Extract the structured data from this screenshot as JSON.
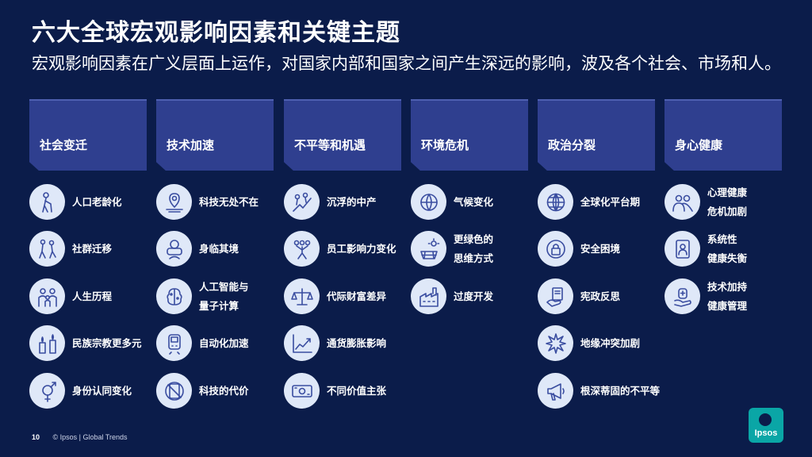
{
  "title": "六大全球宏观影响因素和关键主题",
  "subtitle": "宏观影响因素在广义层面上运作，对国家内部和国家之间产生深远的影响，波及各个社会、市场和人。",
  "columns": [
    {
      "header": "社会变迁",
      "items": [
        {
          "label": "人口老龄化",
          "icon": "elderly-person-icon"
        },
        {
          "label": "社群迁移",
          "icon": "walking-people-icon"
        },
        {
          "label": "人生历程",
          "icon": "family-icon"
        },
        {
          "label": "民族宗教更多元",
          "icon": "candles-icon"
        },
        {
          "label": "身份认同变化",
          "icon": "gender-symbol-icon"
        }
      ]
    },
    {
      "header": "技术加速",
      "items": [
        {
          "label": "科技无处不在",
          "icon": "location-pin-icon"
        },
        {
          "label": "身临其境",
          "icon": "vr-headset-icon"
        },
        {
          "label": "人工智能与\n量子计算",
          "icon": "ai-brain-icon"
        },
        {
          "label": "自动化加速",
          "icon": "train-icon"
        },
        {
          "label": "科技的代价",
          "icon": "no-device-icon"
        }
      ]
    },
    {
      "header": "不平等和机遇",
      "items": [
        {
          "label": "沉浮的中产",
          "icon": "climbing-people-icon"
        },
        {
          "label": "员工影响力变化",
          "icon": "team-icon"
        },
        {
          "label": "代际财富差异",
          "icon": "scales-icon"
        },
        {
          "label": "通货膨胀影响",
          "icon": "rising-chart-icon"
        },
        {
          "label": "不同价值主张",
          "icon": "money-note-icon"
        }
      ]
    },
    {
      "header": "环境危机",
      "items": [
        {
          "label": "气候变化",
          "icon": "globe-thermometer-icon"
        },
        {
          "label": "更绿色的\n思维方式",
          "icon": "solar-panel-icon"
        },
        {
          "label": "过度开发",
          "icon": "factory-icon"
        }
      ]
    },
    {
      "header": "政治分裂",
      "items": [
        {
          "label": "全球化平台期",
          "icon": "globe-icon"
        },
        {
          "label": "安全困境",
          "icon": "lock-icon"
        },
        {
          "label": "宪政反思",
          "icon": "document-hand-icon"
        },
        {
          "label": "地缘冲突加剧",
          "icon": "explosion-icon"
        },
        {
          "label": "根深蒂固的不平等",
          "icon": "megaphone-icon"
        }
      ]
    },
    {
      "header": "身心健康",
      "items": [
        {
          "label": "心理健康\n危机加剧",
          "icon": "people-icon"
        },
        {
          "label": "系统性\n健康失衡",
          "icon": "tablet-health-icon"
        },
        {
          "label": "技术加持\n健康管理",
          "icon": "wearable-hand-icon"
        }
      ]
    }
  ],
  "footer": {
    "page": "10",
    "text": "© Ipsos | Global Trends"
  },
  "logo": "Ipsos",
  "colors": {
    "background": "#0b1c4a",
    "header": "#2f3f8f",
    "icon_bg": "#dfe8f8",
    "icon_stroke": "#3a4da0",
    "logo": "#0aa6a6"
  }
}
